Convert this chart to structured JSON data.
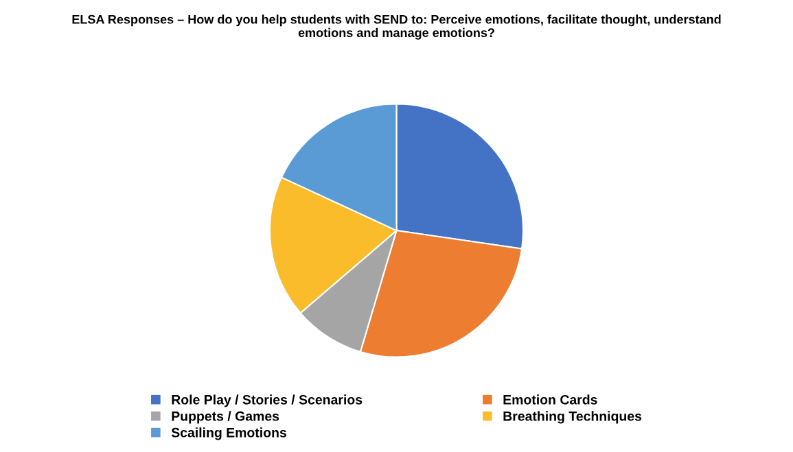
{
  "chart_data": {
    "type": "pie",
    "title": "ELSA Responses – How do you help students with SEND to: Perceive emotions, facilitate thought, understand emotions and manage emotions?",
    "categories": [
      "Role Play / Stories / Scenarios",
      "Emotion Cards",
      "Puppets / Games",
      "Breathing Techniques",
      "Scailing Emotions"
    ],
    "values": [
      27.3,
      27.3,
      9.1,
      18.2,
      18.1
    ],
    "colors": [
      "#4472c4",
      "#ed7d31",
      "#a5a5a5",
      "#fbbc2c",
      "#5b9bd5"
    ],
    "legend": "bottom"
  }
}
